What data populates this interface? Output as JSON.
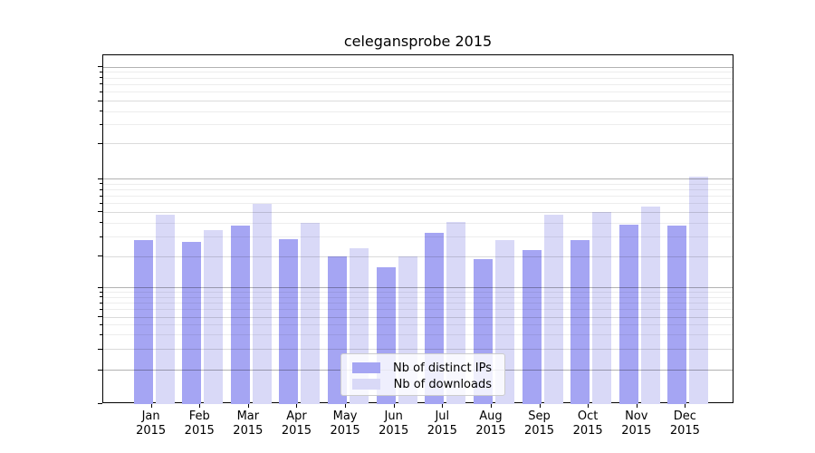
{
  "chart_data": {
    "type": "bar",
    "title": "celegansprobe 2015",
    "categories": [
      "Jan",
      "Feb",
      "Mar",
      "Apr",
      "May",
      "Jun",
      "Jul",
      "Aug",
      "Sep",
      "Oct",
      "Nov",
      "Dec"
    ],
    "year": "2015",
    "series": [
      {
        "name": "Nb of distinct IPs",
        "color": "#a5a5f3",
        "values": [
          28,
          27,
          38,
          29,
          20,
          16,
          33,
          19,
          23,
          28,
          39,
          38
        ]
      },
      {
        "name": "Nb of downloads",
        "color": "#d9d9f7",
        "values": [
          48,
          35,
          60,
          40,
          24,
          20,
          41,
          28,
          48,
          50,
          56,
          104
        ]
      }
    ],
    "yticks": [
      0,
      1,
      2,
      5,
      10,
      20,
      50,
      100,
      200,
      500,
      1000
    ],
    "minor_yticks": [
      3,
      4,
      6,
      7,
      8,
      9,
      30,
      40,
      60,
      70,
      80,
      90,
      300,
      400,
      600,
      700,
      800,
      900
    ],
    "ylim": [
      0,
      1000
    ],
    "xlabel": "",
    "ylabel": "",
    "grid": "on",
    "legend_position": "lower center"
  }
}
